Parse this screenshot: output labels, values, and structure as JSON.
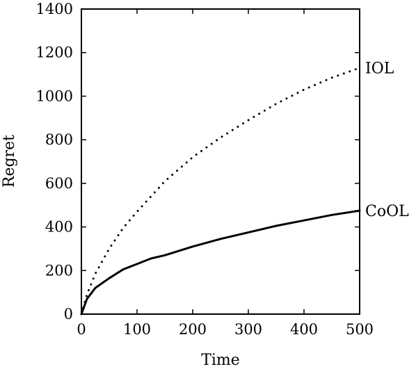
{
  "chart_data": {
    "type": "line",
    "title": "",
    "xlabel": "Time",
    "ylabel": "Regret",
    "xlim": [
      0,
      500
    ],
    "ylim": [
      0,
      1400
    ],
    "xticks": [
      "0",
      "100",
      "200",
      "300",
      "400",
      "500"
    ],
    "yticks": [
      "0",
      "200",
      "400",
      "600",
      "800",
      "1000",
      "1200",
      "1400"
    ],
    "grid": false,
    "legend": "inline labels at right end of lines",
    "series": [
      {
        "name": "IOL",
        "style": "dotted",
        "color": "#000000",
        "x": [
          0,
          10,
          25,
          50,
          75,
          100,
          125,
          150,
          175,
          200,
          250,
          300,
          350,
          400,
          450,
          500
        ],
        "values": [
          0,
          90,
          185,
          300,
          395,
          470,
          540,
          610,
          665,
          720,
          810,
          890,
          965,
          1030,
          1085,
          1130
        ]
      },
      {
        "name": "CoOL",
        "style": "solid",
        "color": "#000000",
        "x": [
          0,
          10,
          25,
          50,
          75,
          100,
          125,
          150,
          175,
          200,
          250,
          300,
          350,
          400,
          450,
          500
        ],
        "values": [
          0,
          70,
          120,
          165,
          205,
          230,
          255,
          270,
          290,
          310,
          345,
          375,
          405,
          430,
          455,
          475
        ]
      }
    ]
  }
}
